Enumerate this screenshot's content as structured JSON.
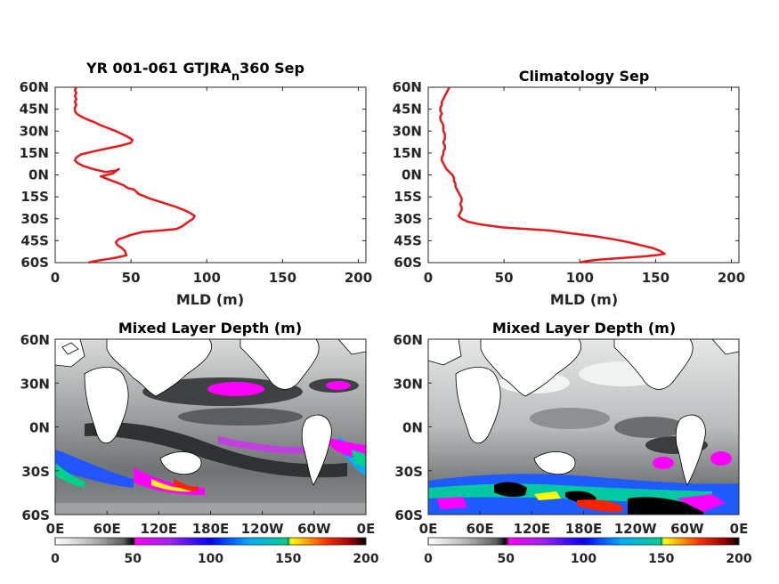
{
  "chart_data": [
    {
      "type": "line",
      "title_main": "YR 001-061 GTJRA",
      "title_sub": "n",
      "title_tail": "360 Sep",
      "xlabel": "MLD (m)",
      "xlim": [
        0,
        205
      ],
      "ylim": [
        -60,
        60
      ],
      "xticks": [
        "0",
        "50",
        "100",
        "150",
        "200"
      ],
      "yticks": [
        "60N",
        "45N",
        "30N",
        "15N",
        "0N",
        "15S",
        "30S",
        "45S",
        "60S"
      ],
      "series": [
        {
          "color": "#e31a1c",
          "points": [
            [
              14,
              60
            ],
            [
              13,
              58
            ],
            [
              14,
              56
            ],
            [
              13,
              54
            ],
            [
              14,
              52
            ],
            [
              13,
              50
            ],
            [
              14,
              48
            ],
            [
              13,
              46
            ],
            [
              13,
              44
            ],
            [
              14,
              42
            ],
            [
              17,
              40
            ],
            [
              21,
              38
            ],
            [
              26,
              36
            ],
            [
              30,
              34
            ],
            [
              35,
              32
            ],
            [
              40,
              30
            ],
            [
              44,
              28
            ],
            [
              48,
              26
            ],
            [
              51,
              24
            ],
            [
              50,
              22
            ],
            [
              43,
              20
            ],
            [
              34,
              18
            ],
            [
              25,
              16
            ],
            [
              17,
              14
            ],
            [
              14,
              12
            ],
            [
              13,
              10
            ],
            [
              15,
              8
            ],
            [
              19,
              6
            ],
            [
              25,
              4
            ],
            [
              33,
              2
            ],
            [
              40,
              3
            ],
            [
              42,
              4
            ],
            [
              38,
              1
            ],
            [
              30,
              -1
            ],
            [
              35,
              -3
            ],
            [
              40,
              -5
            ],
            [
              45,
              -7
            ],
            [
              48,
              -9
            ],
            [
              52,
              -10
            ],
            [
              55,
              -13
            ],
            [
              62,
              -16
            ],
            [
              68,
              -18
            ],
            [
              74,
              -20
            ],
            [
              80,
              -22
            ],
            [
              85,
              -24
            ],
            [
              89,
              -26
            ],
            [
              92,
              -28
            ],
            [
              91,
              -30
            ],
            [
              88,
              -32
            ],
            [
              84,
              -35
            ],
            [
              80,
              -37
            ],
            [
              70,
              -38
            ],
            [
              58,
              -39
            ],
            [
              50,
              -41
            ],
            [
              45,
              -43
            ],
            [
              42,
              -44
            ],
            [
              40,
              -46
            ],
            [
              41,
              -48
            ],
            [
              44,
              -50
            ],
            [
              46,
              -52
            ],
            [
              47,
              -55
            ],
            [
              43,
              -56
            ],
            [
              38,
              -57
            ],
            [
              32,
              -58
            ],
            [
              26,
              -59
            ],
            [
              22,
              -60
            ]
          ]
        }
      ]
    },
    {
      "type": "line",
      "title": "Climatology Sep",
      "xlabel": "MLD (m)",
      "xlim": [
        0,
        205
      ],
      "ylim": [
        -60,
        60
      ],
      "xticks": [
        "0",
        "50",
        "100",
        "150",
        "200"
      ],
      "yticks": [
        "60N",
        "45N",
        "30N",
        "15N",
        "0N",
        "15S",
        "30S",
        "45S",
        "60S"
      ],
      "series": [
        {
          "color": "#e31a1c",
          "points": [
            [
              14,
              60
            ],
            [
              13,
              58
            ],
            [
              12,
              56
            ],
            [
              11,
              54
            ],
            [
              10,
              52
            ],
            [
              9,
              50
            ],
            [
              9,
              48
            ],
            [
              8,
              46
            ],
            [
              8,
              44
            ],
            [
              9,
              42
            ],
            [
              8,
              40
            ],
            [
              8,
              38
            ],
            [
              9,
              36
            ],
            [
              10,
              34
            ],
            [
              10,
              32
            ],
            [
              10,
              30
            ],
            [
              11,
              28
            ],
            [
              11,
              25
            ],
            [
              10,
              22
            ],
            [
              11,
              20
            ],
            [
              11,
              18
            ],
            [
              10,
              16
            ],
            [
              10,
              14
            ],
            [
              9,
              12
            ],
            [
              9,
              10
            ],
            [
              10,
              8
            ],
            [
              11,
              6
            ],
            [
              12,
              4
            ],
            [
              14,
              2
            ],
            [
              16,
              0
            ],
            [
              17,
              -2
            ],
            [
              17,
              -4
            ],
            [
              18,
              -6
            ],
            [
              18,
              -8
            ],
            [
              19,
              -10
            ],
            [
              20,
              -12
            ],
            [
              21,
              -14
            ],
            [
              22,
              -16
            ],
            [
              22,
              -18
            ],
            [
              21,
              -20
            ],
            [
              22,
              -22
            ],
            [
              22,
              -24
            ],
            [
              21,
              -26
            ],
            [
              20,
              -28
            ],
            [
              22,
              -30
            ],
            [
              26,
              -32
            ],
            [
              35,
              -34
            ],
            [
              50,
              -36
            ],
            [
              65,
              -37
            ],
            [
              80,
              -38
            ],
            [
              95,
              -40
            ],
            [
              110,
              -42
            ],
            [
              122,
              -44
            ],
            [
              132,
              -46
            ],
            [
              140,
              -48
            ],
            [
              148,
              -50
            ],
            [
              153,
              -52
            ],
            [
              156,
              -54
            ],
            [
              150,
              -55
            ],
            [
              140,
              -56
            ],
            [
              125,
              -57
            ],
            [
              112,
              -58
            ],
            [
              104,
              -59
            ],
            [
              100,
              -60
            ]
          ]
        }
      ]
    },
    {
      "type": "heatmap",
      "title": "Mixed Layer Depth (m)",
      "xticks": [
        "0E",
        "60E",
        "120E",
        "180E",
        "120W",
        "60W",
        "0E"
      ],
      "yticks": [
        "60N",
        "30N",
        "0N",
        "30S",
        "60S"
      ],
      "colorbar_ticks": [
        "0",
        "50",
        "100",
        "150",
        "200"
      ],
      "colorbar_range": [
        0,
        200
      ]
    },
    {
      "type": "heatmap",
      "title": "Mixed Layer Depth (m)",
      "xticks": [
        "0E",
        "60E",
        "120E",
        "180E",
        "120W",
        "60W",
        "0E"
      ],
      "yticks": [
        "60N",
        "30N",
        "0N",
        "30S",
        "60S"
      ],
      "colorbar_ticks": [
        "0",
        "50",
        "100",
        "150",
        "200"
      ],
      "colorbar_range": [
        0,
        200
      ]
    }
  ],
  "colors": {
    "line": "#e31a1c",
    "ocean_base": "#c9cccc",
    "colormap": [
      "#ffffff",
      "#9aa0a0",
      "#000000",
      "#ff00ff",
      "#0000ff",
      "#00aaff",
      "#00ffaa",
      "#ffff00",
      "#ff0000",
      "#000000"
    ]
  }
}
